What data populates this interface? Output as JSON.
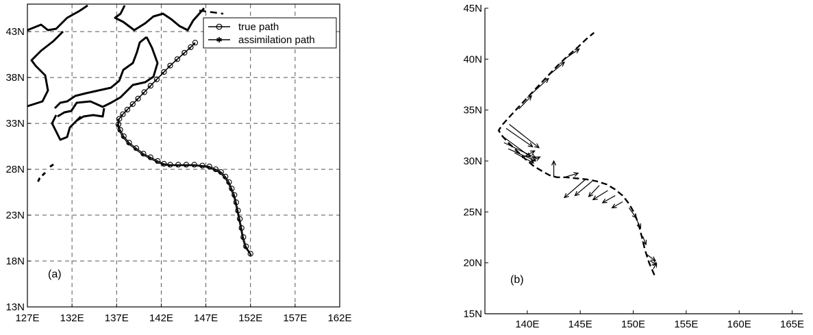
{
  "colors": {
    "ink": "#000000",
    "grid": "#555555",
    "background": "#ffffff"
  },
  "chart_data": [
    {
      "type": "line",
      "panel_label": "(a)",
      "xlabel": "",
      "ylabel": "",
      "xlim": [
        127,
        162
      ],
      "ylim": [
        13,
        46
      ],
      "x_ticks": [
        127,
        132,
        137,
        142,
        147,
        152,
        157,
        162
      ],
      "x_tick_labels": [
        "127E",
        "132E",
        "137E",
        "142E",
        "147E",
        "152E",
        "157E",
        "162E"
      ],
      "y_ticks": [
        13,
        18,
        23,
        28,
        33,
        38,
        43
      ],
      "y_tick_labels": [
        "13N",
        "18N",
        "23N",
        "28N",
        "33N",
        "38N",
        "43N"
      ],
      "grid": true,
      "legend_position": "top-right",
      "legend": [
        "true path",
        "assimilation path"
      ],
      "series": [
        {
          "name": "true path",
          "marker": "circle",
          "x": [
            152.0,
            151.5,
            151.2,
            151.0,
            150.8,
            150.6,
            150.4,
            150.2,
            149.9,
            149.6,
            149.2,
            148.7,
            148.1,
            147.4,
            146.6,
            145.7,
            144.8,
            143.9,
            143.0,
            142.3,
            141.6,
            140.8,
            140.0,
            139.2,
            138.4,
            137.8,
            137.4,
            137.2,
            137.3,
            137.7,
            138.2,
            138.8,
            139.4,
            140.1,
            140.8,
            141.5,
            142.3,
            143.0,
            143.8,
            144.6,
            145.3,
            145.8
          ],
          "y": [
            18.8,
            19.6,
            20.6,
            21.6,
            22.6,
            23.5,
            24.4,
            25.2,
            25.9,
            26.6,
            27.2,
            27.7,
            28.0,
            28.3,
            28.4,
            28.5,
            28.5,
            28.5,
            28.5,
            28.6,
            28.9,
            29.3,
            29.7,
            30.3,
            30.9,
            31.6,
            32.3,
            32.9,
            33.5,
            34.0,
            34.5,
            35.1,
            35.7,
            36.4,
            37.1,
            37.8,
            38.6,
            39.3,
            40.0,
            40.7,
            41.3,
            41.8
          ]
        },
        {
          "name": "assimilation path",
          "marker": "star",
          "x": [
            152.0,
            151.4,
            151.1,
            150.9,
            150.7,
            150.5,
            150.3,
            150.1,
            149.8,
            149.5,
            149.1,
            148.6,
            148.0,
            147.3,
            146.5,
            145.6,
            144.7,
            143.8,
            142.9,
            142.2,
            141.5,
            140.7,
            139.9,
            139.1,
            138.3,
            137.7,
            137.3,
            137.1,
            137.2,
            137.6,
            138.1,
            138.7,
            139.3,
            140.0,
            140.7,
            141.4,
            142.2,
            142.9,
            143.7,
            144.5,
            145.2,
            145.7
          ],
          "y": [
            18.7,
            19.5,
            20.5,
            21.5,
            22.5,
            23.4,
            24.3,
            25.1,
            25.8,
            26.5,
            27.1,
            27.6,
            27.9,
            28.2,
            28.3,
            28.4,
            28.4,
            28.4,
            28.4,
            28.5,
            28.8,
            29.2,
            29.6,
            30.2,
            30.8,
            31.5,
            32.2,
            32.8,
            33.4,
            33.9,
            34.4,
            35.0,
            35.6,
            36.3,
            37.0,
            37.7,
            38.5,
            39.2,
            39.9,
            40.6,
            41.2,
            41.7
          ]
        }
      ]
    },
    {
      "type": "line",
      "panel_label": "(b)",
      "xlabel": "",
      "ylabel": "",
      "xlim": [
        136,
        166
      ],
      "ylim": [
        15,
        45
      ],
      "x_ticks": [
        140,
        145,
        150,
        155,
        160,
        165
      ],
      "x_tick_labels": [
        "140E",
        "145E",
        "150E",
        "155E",
        "160E",
        "165E"
      ],
      "y_ticks": [
        15,
        20,
        25,
        30,
        35,
        40,
        45
      ],
      "y_tick_labels": [
        "15N",
        "20N",
        "25N",
        "30N",
        "35N",
        "40N",
        "45N"
      ],
      "grid": false,
      "series": [
        {
          "name": "",
          "style": "dashed",
          "x": [
            152.0,
            151.5,
            151.1,
            150.8,
            150.5,
            150.1,
            149.6,
            149.0,
            148.3,
            147.5,
            146.6,
            145.6,
            144.6,
            143.7,
            142.8,
            142.1,
            141.4,
            140.6,
            139.8,
            139.0,
            138.2,
            137.6,
            137.3,
            137.6,
            138.2,
            139.0,
            139.9,
            140.8,
            141.8,
            142.8,
            143.8,
            144.8,
            145.6,
            146.3
          ],
          "y": [
            18.8,
            20.0,
            21.3,
            22.6,
            23.8,
            24.9,
            25.8,
            26.6,
            27.2,
            27.7,
            28.0,
            28.2,
            28.3,
            28.4,
            28.4,
            28.6,
            29.0,
            29.5,
            30.2,
            31.0,
            31.8,
            32.5,
            33.0,
            33.5,
            34.2,
            35.1,
            36.1,
            37.1,
            38.2,
            39.3,
            40.3,
            41.2,
            42.0,
            42.6
          ]
        }
      ],
      "vector_arrows": [
        {
          "x": 138.0,
          "y": 33.2,
          "u": 2.5,
          "v": -1.8
        },
        {
          "x": 138.3,
          "y": 33.6,
          "u": 2.8,
          "v": -2.3
        },
        {
          "x": 137.7,
          "y": 32.4,
          "u": 2.6,
          "v": -2.0
        },
        {
          "x": 137.8,
          "y": 31.8,
          "u": 3.0,
          "v": -1.5
        },
        {
          "x": 138.2,
          "y": 31.2,
          "u": 2.6,
          "v": -1.2
        },
        {
          "x": 138.8,
          "y": 30.8,
          "u": 1.8,
          "v": -1.0
        },
        {
          "x": 139.5,
          "y": 30.3,
          "u": 1.2,
          "v": 0.7
        },
        {
          "x": 140.2,
          "y": 29.9,
          "u": 1.0,
          "v": 0.5
        },
        {
          "x": 142.5,
          "y": 28.4,
          "u": 0.0,
          "v": 1.6
        },
        {
          "x": 143.5,
          "y": 28.4,
          "u": 1.3,
          "v": 0.4
        },
        {
          "x": 145.5,
          "y": 28.2,
          "u": -2.0,
          "v": -1.8
        },
        {
          "x": 146.1,
          "y": 28.0,
          "u": -1.6,
          "v": -1.4
        },
        {
          "x": 146.8,
          "y": 27.6,
          "u": -1.0,
          "v": -1.1
        },
        {
          "x": 147.6,
          "y": 27.1,
          "u": -1.4,
          "v": -0.9
        },
        {
          "x": 148.3,
          "y": 26.6,
          "u": -1.2,
          "v": -0.7
        },
        {
          "x": 149.0,
          "y": 26.0,
          "u": -1.0,
          "v": -0.6
        },
        {
          "x": 149.6,
          "y": 25.4,
          "u": 0.7,
          "v": -1.0
        },
        {
          "x": 150.3,
          "y": 24.3,
          "u": 0.4,
          "v": -0.9
        },
        {
          "x": 150.9,
          "y": 22.6,
          "u": 0.3,
          "v": -0.8
        },
        {
          "x": 151.3,
          "y": 20.8,
          "u": 0.8,
          "v": -0.6
        },
        {
          "x": 151.6,
          "y": 20.2,
          "u": 0.6,
          "v": -0.4
        },
        {
          "x": 151.9,
          "y": 19.4,
          "u": 0.3,
          "v": 0.6
        },
        {
          "x": 142.0,
          "y": 38.4,
          "u": 1.5,
          "v": 1.3
        },
        {
          "x": 143.5,
          "y": 40.0,
          "u": 1.4,
          "v": 1.0
        },
        {
          "x": 140.4,
          "y": 36.6,
          "u": 1.6,
          "v": 1.5
        },
        {
          "x": 139.2,
          "y": 35.1,
          "u": 1.2,
          "v": 1.3
        }
      ]
    }
  ]
}
